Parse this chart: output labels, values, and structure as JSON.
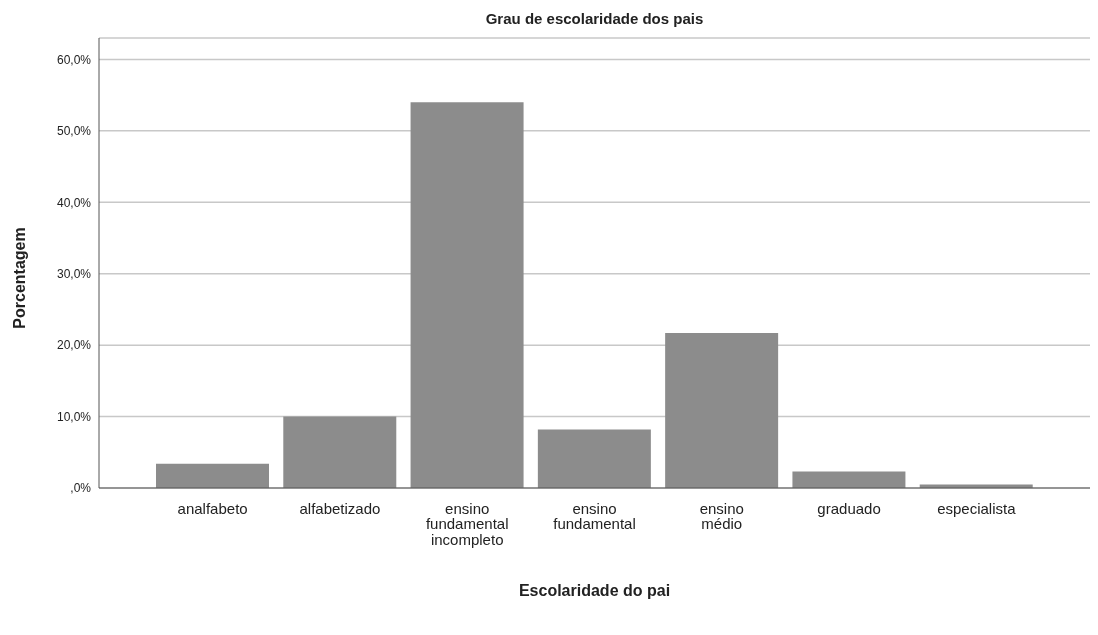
{
  "chart_data": {
    "type": "bar",
    "title": "Grau de escolaridade dos pais",
    "xlabel": "Escolaridade do pai",
    "ylabel": "Porcentagem",
    "categories": [
      "analfabeto",
      "alfabetizado",
      "ensino fundamental incompleto",
      "ensino fundamental",
      "ensino médio",
      "graduado",
      "especialista"
    ],
    "values": [
      3.4,
      10.0,
      54.0,
      8.2,
      21.7,
      2.3,
      0.5
    ],
    "color": "#8c8c8c",
    "ylim": [
      0,
      63
    ],
    "yticks": [
      {
        "value": 0,
        "label": ",0%"
      },
      {
        "value": 10,
        "label": "10,0%"
      },
      {
        "value": 20,
        "label": "20,0%"
      },
      {
        "value": 30,
        "label": "30,0%"
      },
      {
        "value": 40,
        "label": "40,0%"
      },
      {
        "value": 50,
        "label": "50,0%"
      },
      {
        "value": 60,
        "label": "60,0%"
      }
    ],
    "grid": "y"
  }
}
